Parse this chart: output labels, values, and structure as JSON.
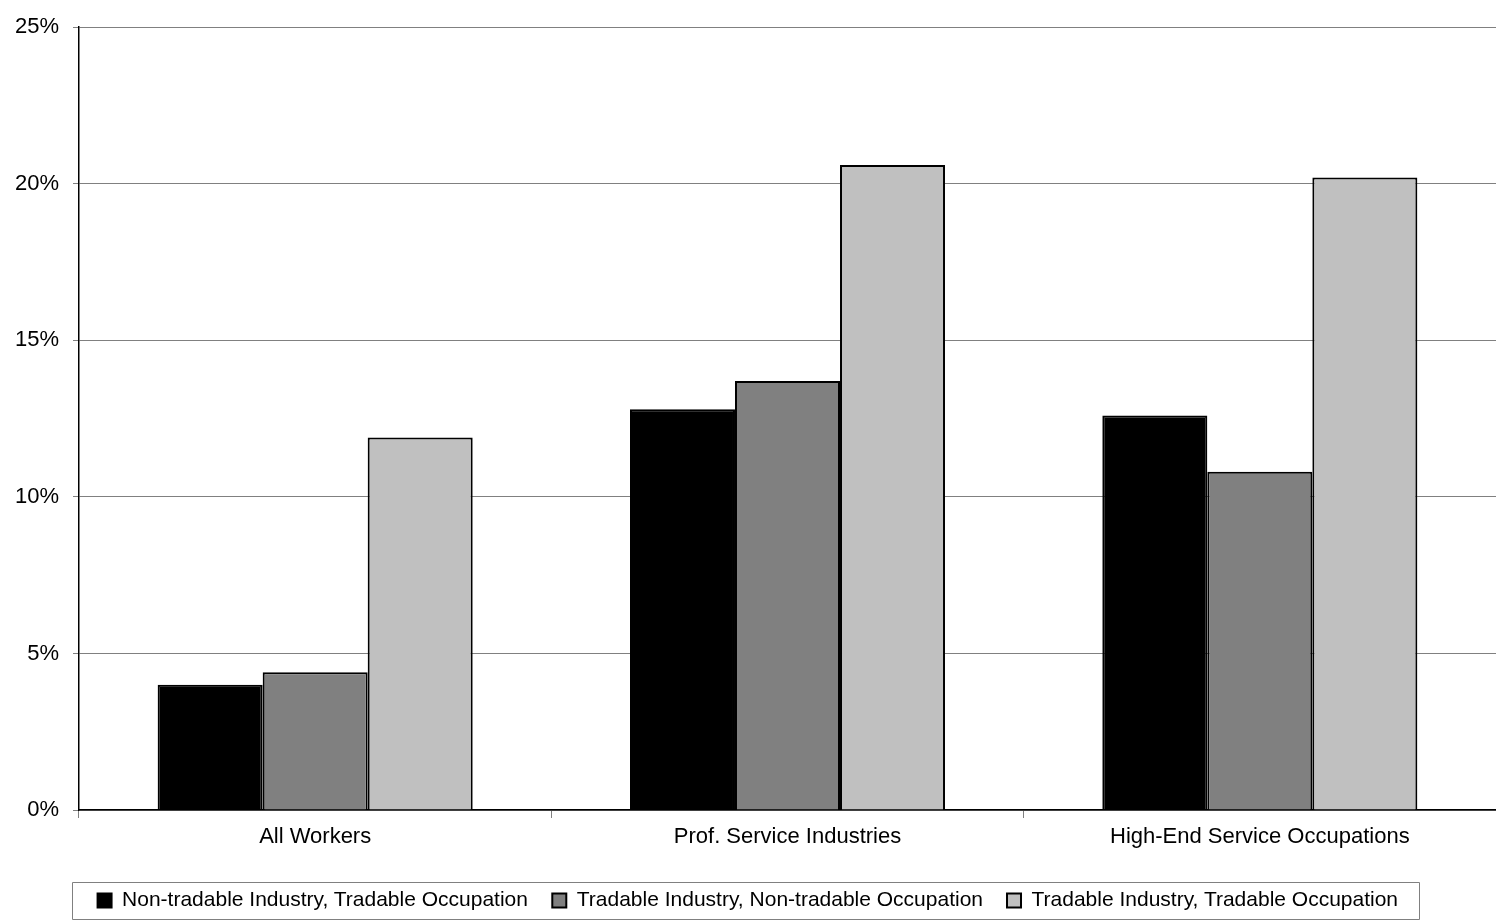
{
  "chart_data": {
    "type": "bar",
    "categories": [
      "All Workers",
      "Prof. Service Industries",
      "High-End Service Occupations"
    ],
    "series": [
      {
        "name": "Non-tradable Industry, Tradable Occupation",
        "color": "#000000",
        "values": [
          4.0,
          12.8,
          12.6
        ]
      },
      {
        "name": "Tradable Industry, Non-tradable Occupation",
        "color": "#808080",
        "values": [
          4.4,
          13.7,
          10.8
        ]
      },
      {
        "name": "Tradable Industry, Tradable Occupation",
        "color": "#c0c0c0",
        "values": [
          11.9,
          20.6,
          20.2
        ]
      }
    ],
    "ylim": [
      0,
      25
    ],
    "yticks": [
      {
        "value": 0,
        "label": "0%"
      },
      {
        "value": 5,
        "label": "5%"
      },
      {
        "value": 10,
        "label": "10%"
      },
      {
        "value": 15,
        "label": "15%"
      },
      {
        "value": 20,
        "label": "20%"
      },
      {
        "value": 25,
        "label": "25%"
      }
    ],
    "grid": "y",
    "legend": "bottom"
  }
}
